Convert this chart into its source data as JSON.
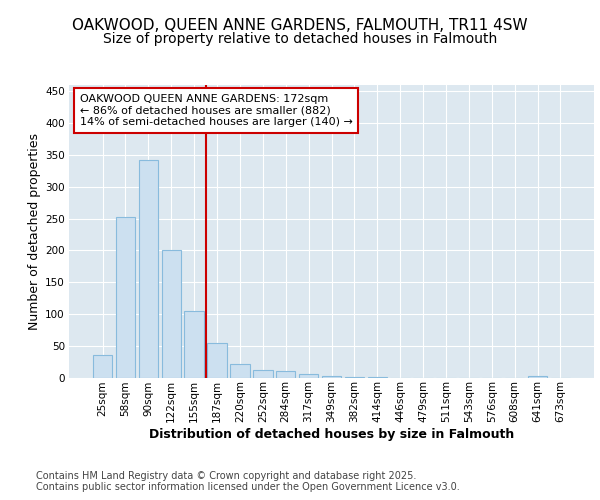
{
  "title_line1": "OAKWOOD, QUEEN ANNE GARDENS, FALMOUTH, TR11 4SW",
  "title_line2": "Size of property relative to detached houses in Falmouth",
  "xlabel": "Distribution of detached houses by size in Falmouth",
  "ylabel": "Number of detached properties",
  "categories": [
    "25sqm",
    "58sqm",
    "90sqm",
    "122sqm",
    "155sqm",
    "187sqm",
    "220sqm",
    "252sqm",
    "284sqm",
    "317sqm",
    "349sqm",
    "382sqm",
    "414sqm",
    "446sqm",
    "479sqm",
    "511sqm",
    "543sqm",
    "576sqm",
    "608sqm",
    "641sqm",
    "673sqm"
  ],
  "values": [
    35,
    252,
    342,
    200,
    105,
    55,
    22,
    12,
    10,
    5,
    3,
    1,
    1,
    0,
    0,
    0,
    0,
    0,
    0,
    3,
    0
  ],
  "bar_color": "#cce0f0",
  "bar_edge_color": "#88bbdd",
  "vline_index": 5,
  "vline_color": "#cc0000",
  "annotation_text": "OAKWOOD QUEEN ANNE GARDENS: 172sqm\n← 86% of detached houses are smaller (882)\n14% of semi-detached houses are larger (140) →",
  "annotation_box_color": "#ffffff",
  "annotation_box_edge": "#cc0000",
  "ylim": [
    0,
    460
  ],
  "yticks": [
    0,
    50,
    100,
    150,
    200,
    250,
    300,
    350,
    400,
    450
  ],
  "plot_bg_color": "#dde8f0",
  "fig_bg_color": "#ffffff",
  "grid_color": "#ffffff",
  "footer_text": "Contains HM Land Registry data © Crown copyright and database right 2025.\nContains public sector information licensed under the Open Government Licence v3.0.",
  "title_fontsize": 11,
  "subtitle_fontsize": 10,
  "axis_label_fontsize": 9,
  "tick_fontsize": 7.5,
  "annotation_fontsize": 8,
  "footer_fontsize": 7
}
